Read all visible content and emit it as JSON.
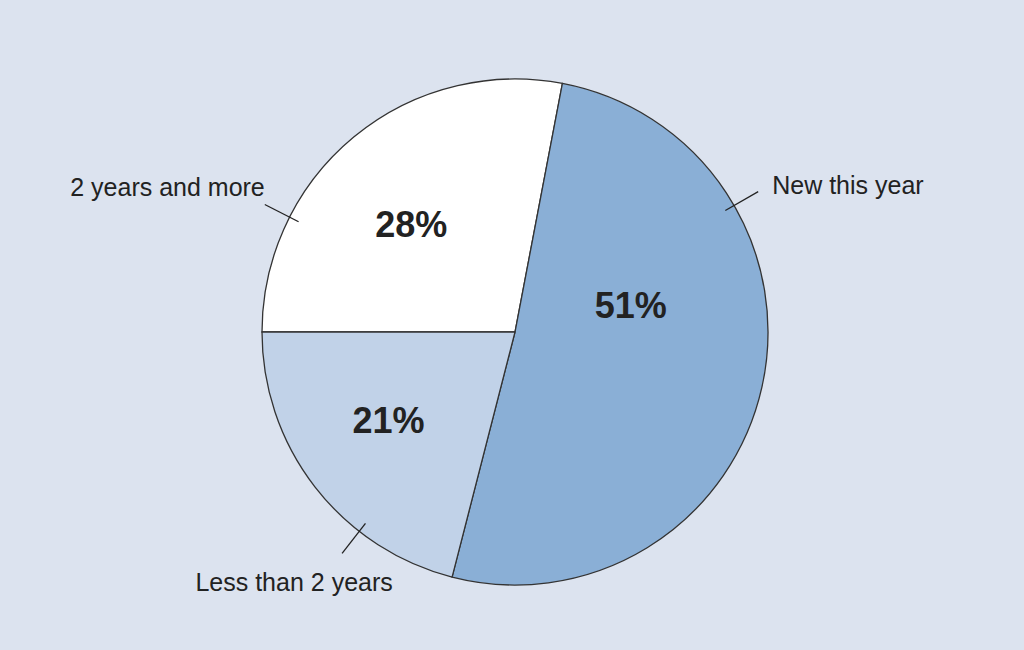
{
  "chart_data": {
    "type": "pie",
    "categories": [
      "2 years and more",
      "New this year",
      "Less than 2 years"
    ],
    "values": [
      28,
      51,
      21
    ],
    "value_labels": [
      "28%",
      "51%",
      "21%"
    ],
    "colors": [
      "#ffffff",
      "#8aafd6",
      "#c1d2e8"
    ],
    "data_labels": true
  }
}
